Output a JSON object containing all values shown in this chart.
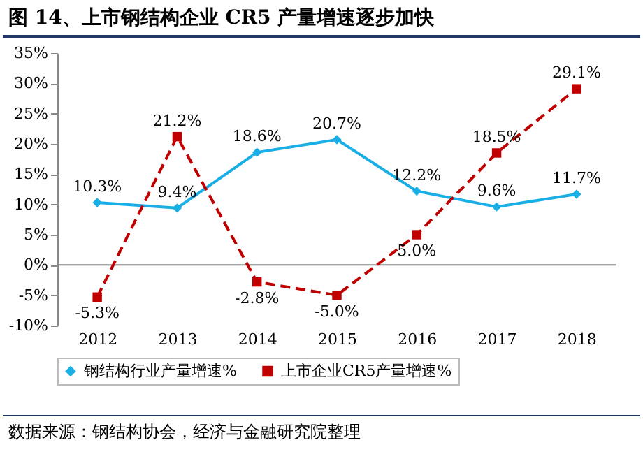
{
  "chart_data": {
    "type": "line",
    "title": "图 14、上市钢结构企业 CR5 产量增速逐步加快",
    "categories": [
      "2012",
      "2013",
      "2014",
      "2015",
      "2016",
      "2017",
      "2018"
    ],
    "series": [
      {
        "name": "钢结构行业产量增速%",
        "color": "#1aaee6",
        "marker": "diamond",
        "line_style": "solid",
        "values": [
          10.3,
          9.4,
          18.6,
          20.7,
          12.2,
          9.6,
          11.7
        ],
        "value_labels": [
          "10.3%",
          "9.4%",
          "18.6%",
          "20.7%",
          "12.2%",
          "9.6%",
          "11.7%"
        ]
      },
      {
        "name": "上市企业CR5产量增速%",
        "color": "#c00000",
        "marker": "square",
        "line_style": "dashed",
        "values": [
          -5.3,
          21.2,
          -2.8,
          -5.0,
          5.0,
          18.5,
          29.1
        ],
        "value_labels": [
          "-5.3%",
          "21.2%",
          "-2.8%",
          "-5.0%",
          "5.0%",
          "18.5%",
          "29.1%"
        ]
      }
    ],
    "ylim": [
      -10,
      35
    ],
    "yticks": [
      {
        "value": -10,
        "label": "-10%"
      },
      {
        "value": -5,
        "label": "-5%"
      },
      {
        "value": 0,
        "label": "0%"
      },
      {
        "value": 5,
        "label": "5%"
      },
      {
        "value": 10,
        "label": "10%"
      },
      {
        "value": 15,
        "label": "15%"
      },
      {
        "value": 20,
        "label": "20%"
      },
      {
        "value": 25,
        "label": "25%"
      },
      {
        "value": 30,
        "label": "30%"
      },
      {
        "value": 35,
        "label": "35%"
      }
    ],
    "grid": false,
    "ref_lines": [
      {
        "axis": "y",
        "value": 0,
        "color": "#888888"
      }
    ],
    "legend": "bottom",
    "annotations": [
      "数据来源：钢结构协会，经济与金融研究院整理"
    ]
  }
}
